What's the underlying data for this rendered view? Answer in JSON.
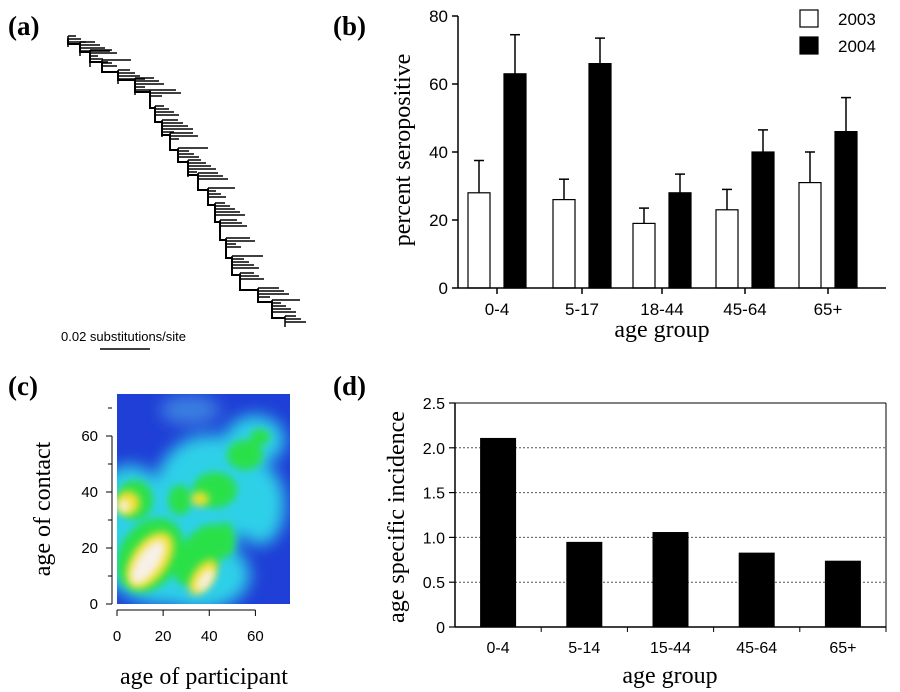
{
  "panels": {
    "a": {
      "label": "(a)",
      "scale_text": "0.02 substitutions/site"
    },
    "b": {
      "label": "(b)"
    },
    "c": {
      "label": "(c)"
    },
    "d": {
      "label": "(d)"
    }
  },
  "chart_data": [
    {
      "panel": "b",
      "type": "bar",
      "title": "",
      "xlabel": "age group",
      "ylabel": "percent seropositive",
      "categories": [
        "0-4",
        "5-17",
        "18-44",
        "45-64",
        "65+"
      ],
      "series": [
        {
          "name": "2003",
          "values": [
            28,
            26,
            19,
            23,
            31
          ],
          "error_upper": [
            37.5,
            32,
            23.5,
            29,
            40
          ],
          "fill": "#ffffff"
        },
        {
          "name": "2004",
          "values": [
            63,
            66,
            28,
            40,
            46
          ],
          "error_upper": [
            74.5,
            73.5,
            33.5,
            46.5,
            56
          ],
          "fill": "#000000"
        }
      ],
      "ylim": [
        0,
        80
      ],
      "yticks": [
        0,
        20,
        40,
        60,
        80
      ],
      "legend_position": "top-right",
      "grid": false
    },
    {
      "panel": "c",
      "type": "heatmap",
      "title": "",
      "xlabel": "age of participant",
      "ylabel": "age of contact",
      "xlim": [
        0,
        75
      ],
      "ylim": [
        0,
        75
      ],
      "xticks": [
        0,
        20,
        40,
        60
      ],
      "yticks": [
        0,
        20,
        40,
        60
      ],
      "colors": {
        "low": "#1f3fd6",
        "mid": "#2fd0e8",
        "mid_high": "#2be04a",
        "high": "#f0e02a",
        "highest": "#f7f0e8"
      }
    },
    {
      "panel": "d",
      "type": "bar",
      "title": "",
      "xlabel": "age group",
      "ylabel": "age specific incidence",
      "categories": [
        "0-4",
        "5-14",
        "15-44",
        "45-64",
        "65+"
      ],
      "values": [
        2.11,
        0.95,
        1.06,
        0.83,
        0.74
      ],
      "ylim": [
        0,
        2.5
      ],
      "yticks": [
        0,
        0.5,
        1.0,
        1.5,
        2.0,
        2.5
      ],
      "ytick_labels": [
        "0",
        "0.5",
        "1.0",
        "1.5",
        "2.0",
        "2.5"
      ],
      "grid": true
    }
  ]
}
